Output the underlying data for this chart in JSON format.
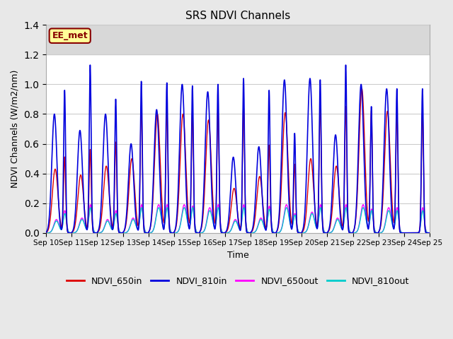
{
  "title": "SRS NDVI Channels",
  "xlabel": "Time",
  "ylabel": "NDVI Channels (W/m2/nm)",
  "ylim": [
    0.0,
    1.4
  ],
  "yticks": [
    0.0,
    0.2,
    0.4,
    0.6,
    0.8,
    1.0,
    1.2,
    1.4
  ],
  "num_days": 15,
  "series": {
    "NDVI_650in": {
      "color": "#dd0000",
      "lw": 1.0
    },
    "NDVI_810in": {
      "color": "#0000dd",
      "lw": 1.2
    },
    "NDVI_650out": {
      "color": "#ff00ff",
      "lw": 1.0
    },
    "NDVI_810out": {
      "color": "#00cccc",
      "lw": 1.0
    }
  },
  "annotation_text": "EE_met",
  "annotation_color": "#880000",
  "annotation_bg": "#ffff99",
  "background_color": "#e8e8e8",
  "plot_bg_color": "#ffffff",
  "shade_above": 1.2,
  "shade_color": "#d8d8d8",
  "grid_color": "#cccccc",
  "tick_labels": [
    "Sep 10",
    "Sep 11",
    "Sep 12",
    "Sep 13",
    "Sep 14",
    "Sep 15",
    "Sep 16",
    "Sep 17",
    "Sep 18",
    "Sep 19",
    "Sep 20",
    "Sep 21",
    "Sep 22",
    "Sep 23",
    "Sep 24",
    "Sep 25"
  ],
  "peak_810in": [
    0.96,
    1.13,
    0.9,
    1.02,
    1.01,
    0.99,
    1.0,
    1.04,
    0.96,
    0.67,
    1.03,
    1.13,
    0.85,
    0.97,
    0.97
  ],
  "peak2_810in": [
    0.8,
    0.69,
    0.8,
    0.6,
    0.83,
    1.0,
    0.95,
    0.51,
    0.58,
    1.03,
    1.04,
    0.66,
    1.0,
    0.97,
    0.0
  ],
  "peak_650in": [
    0.51,
    0.56,
    0.61,
    0.86,
    0.85,
    0.82,
    0.83,
    0.86,
    0.59,
    0.46,
    0.88,
    0.85,
    0.82,
    0.82,
    0.82
  ],
  "peak2_650in": [
    0.43,
    0.39,
    0.45,
    0.5,
    0.8,
    0.8,
    0.76,
    0.3,
    0.38,
    0.81,
    0.5,
    0.45,
    0.97,
    0.82,
    0.0
  ],
  "peak_650out": [
    0.15,
    0.19,
    0.15,
    0.19,
    0.19,
    0.18,
    0.19,
    0.19,
    0.18,
    0.13,
    0.19,
    0.19,
    0.16,
    0.17,
    0.17
  ],
  "peak2_650out": [
    0.09,
    0.1,
    0.09,
    0.1,
    0.19,
    0.19,
    0.17,
    0.09,
    0.1,
    0.19,
    0.14,
    0.1,
    0.19,
    0.17,
    0.0
  ],
  "peak_810out": [
    0.13,
    0.17,
    0.13,
    0.17,
    0.17,
    0.17,
    0.17,
    0.17,
    0.16,
    0.12,
    0.17,
    0.17,
    0.15,
    0.15,
    0.15
  ],
  "peak2_810out": [
    0.08,
    0.09,
    0.08,
    0.09,
    0.17,
    0.17,
    0.15,
    0.08,
    0.09,
    0.17,
    0.13,
    0.09,
    0.17,
    0.15,
    0.0
  ]
}
